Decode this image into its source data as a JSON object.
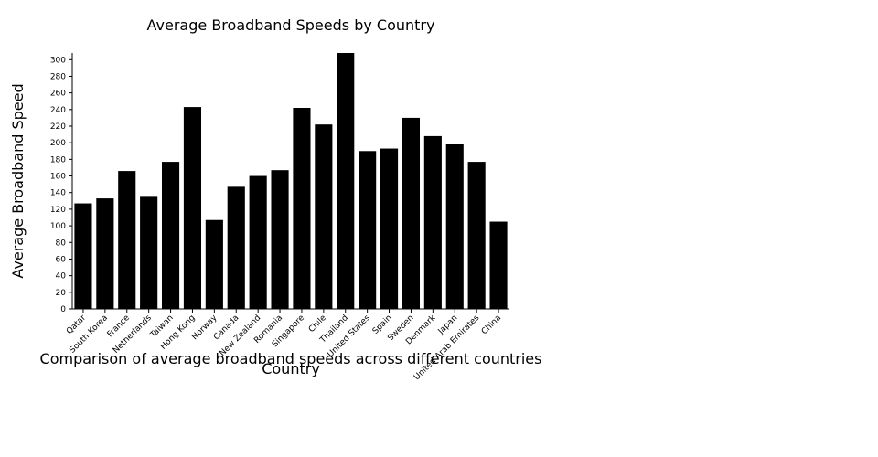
{
  "chart_data": {
    "type": "bar",
    "title": "Average Broadband Speeds by Country",
    "subtitle": "Comparison of average broadband speeds across different countries",
    "x_label": "Country",
    "y_label": "Average Broadband Speed",
    "categories": [
      "Qatar",
      "South Korea",
      "France",
      "Netherlands",
      "Taiwan",
      "Hong Kong",
      "Norway",
      "Canada",
      "New Zealand",
      "Romania",
      "Singapore",
      "Chile",
      "Thailand",
      "United States",
      "Spain",
      "Sweden",
      "Denmark",
      "Japan",
      "United Arab Emirates",
      "China"
    ],
    "values": [
      127,
      133,
      166,
      136,
      177,
      243,
      107,
      147,
      160,
      167,
      242,
      222,
      308,
      190,
      193,
      230,
      208,
      198,
      177,
      105
    ],
    "color": "#000000",
    "ylim": [
      0,
      308
    ],
    "yticks": [
      0,
      20,
      40,
      60,
      80,
      100,
      120,
      140,
      160,
      180,
      200,
      220,
      240,
      260,
      280,
      300
    ]
  }
}
